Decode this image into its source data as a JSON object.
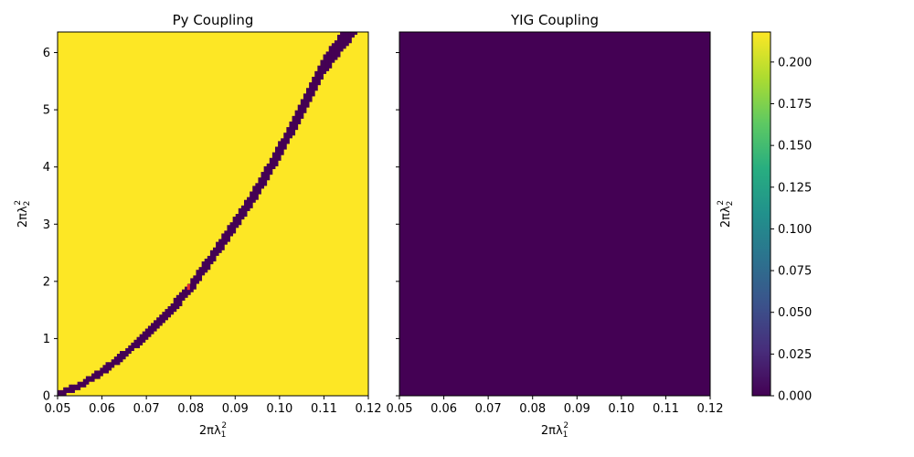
{
  "chart_data": [
    {
      "type": "heatmap",
      "title": "Py Coupling",
      "xlabel": "2πλ",
      "xlabel_sup": "2",
      "xlabel_sub": "1",
      "ylabel": "2πλ",
      "ylabel_sup": "2",
      "ylabel_sub": "2",
      "xlim": [
        0.05,
        0.12
      ],
      "ylim": [
        0,
        6.36
      ],
      "xticks": [
        0.05,
        0.06,
        0.07,
        0.08,
        0.09,
        0.1,
        0.11,
        0.12
      ],
      "xtick_labels": [
        "0.05",
        "0.06",
        "0.07",
        "0.08",
        "0.09",
        "0.10",
        "0.11",
        "0.12"
      ],
      "yticks": [
        0,
        1,
        2,
        3,
        4,
        5,
        6
      ],
      "ytick_labels": [
        "0",
        "1",
        "2",
        "3",
        "4",
        "5",
        "6"
      ],
      "background_value": 0.218,
      "band_value": 0.0,
      "band_curve": {
        "x": [
          0.05,
          0.055,
          0.06,
          0.065,
          0.07,
          0.075,
          0.08,
          0.085,
          0.09,
          0.095,
          0.1,
          0.105,
          0.11,
          0.115
        ],
        "y_center": [
          0.02,
          0.18,
          0.42,
          0.72,
          1.08,
          1.46,
          1.9,
          2.45,
          3.0,
          3.6,
          4.28,
          5.0,
          5.78,
          6.28
        ],
        "half_width": [
          0.03,
          0.04,
          0.05,
          0.06,
          0.07,
          0.08,
          0.09,
          0.1,
          0.11,
          0.12,
          0.13,
          0.14,
          0.15,
          0.16
        ]
      },
      "marker": {
        "x": 0.0795,
        "y": 1.9,
        "color": "#e8292c"
      }
    },
    {
      "type": "heatmap",
      "title": "YIG Coupling",
      "xlabel": "2πλ",
      "xlabel_sup": "2",
      "xlabel_sub": "1",
      "xlim": [
        0.05,
        0.12
      ],
      "ylim": [
        0,
        6.36
      ],
      "xticks": [
        0.05,
        0.06,
        0.07,
        0.08,
        0.09,
        0.1,
        0.11,
        0.12
      ],
      "xtick_labels": [
        "0.05",
        "0.06",
        "0.07",
        "0.08",
        "0.09",
        "0.10",
        "0.11",
        "0.12"
      ],
      "yticks": [
        0,
        1,
        2,
        3,
        4,
        5,
        6
      ],
      "background_value": 0.0
    }
  ],
  "colorbar": {
    "colormap": "viridis",
    "vmin": 0.0,
    "vmax": 0.218,
    "ticks": [
      0.0,
      0.025,
      0.05,
      0.075,
      0.1,
      0.125,
      0.15,
      0.175,
      0.2
    ],
    "tick_labels": [
      "0.000",
      "0.025",
      "0.050",
      "0.075",
      "0.100",
      "0.125",
      "0.150",
      "0.175",
      "0.200"
    ],
    "label": "2πλ",
    "label_sup": "2",
    "label_sub": "2"
  },
  "colors": {
    "high": "#fde725",
    "low": "#440154",
    "marker": "#e8292c"
  }
}
